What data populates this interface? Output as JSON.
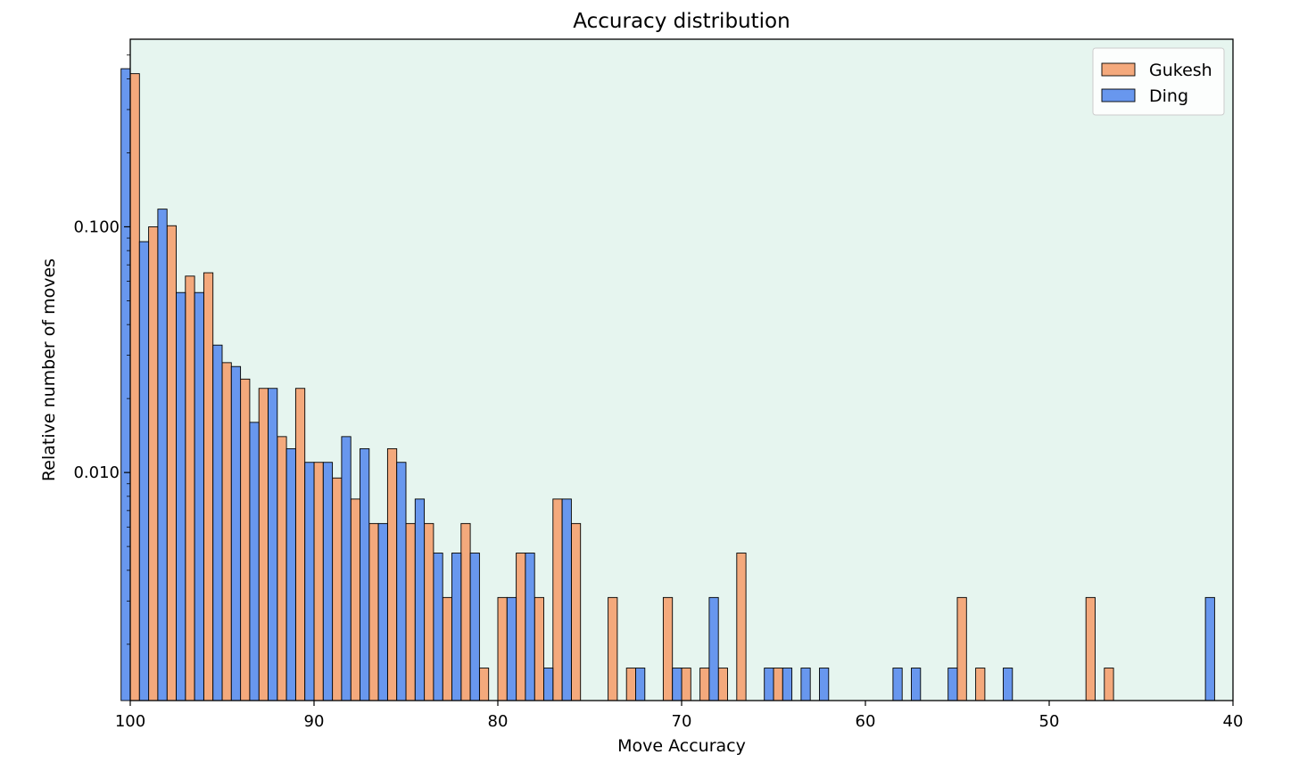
{
  "chart_data": {
    "type": "bar",
    "title": "Accuracy distribution",
    "xlabel": "Move Accuracy",
    "ylabel": "Relative number of moves",
    "x_reversed": true,
    "xlim": [
      100,
      40
    ],
    "ylim": [
      0.00118,
      0.58
    ],
    "y_scale": "log",
    "x_ticks": [
      100,
      90,
      80,
      70,
      60,
      50,
      40
    ],
    "y_ticks": [
      0.1,
      0.01
    ],
    "y_tick_labels": [
      "0.100",
      "0.010"
    ],
    "bin_width": 1,
    "background": "#e6f5ef",
    "legend": {
      "position": "top-right"
    },
    "series": [
      {
        "name": "Gukesh",
        "color": "#f4a97c",
        "points": [
          [
            99.5,
            0.42
          ],
          [
            98.5,
            0.1
          ],
          [
            97.5,
            0.101
          ],
          [
            96.5,
            0.063
          ],
          [
            95.5,
            0.065
          ],
          [
            94.5,
            0.028
          ],
          [
            93.5,
            0.024
          ],
          [
            92.5,
            0.022
          ],
          [
            91.5,
            0.014
          ],
          [
            90.5,
            0.022
          ],
          [
            89.5,
            0.011
          ],
          [
            88.5,
            0.0095
          ],
          [
            87.5,
            0.0078
          ],
          [
            86.5,
            0.0062
          ],
          [
            85.5,
            0.0125
          ],
          [
            84.5,
            0.0062
          ],
          [
            83.5,
            0.0062
          ],
          [
            82.5,
            0.0031
          ],
          [
            81.5,
            0.0062
          ],
          [
            80.5,
            0.0016
          ],
          [
            79.5,
            0.0031
          ],
          [
            78.5,
            0.0047
          ],
          [
            77.5,
            0.0031
          ],
          [
            76.5,
            0.0078
          ],
          [
            75.5,
            0.0062
          ],
          [
            73.5,
            0.0031
          ],
          [
            72.5,
            0.0016
          ],
          [
            70.5,
            0.0031
          ],
          [
            69.5,
            0.0016
          ],
          [
            68.5,
            0.0016
          ],
          [
            67.5,
            0.0016
          ],
          [
            66.5,
            0.0047
          ],
          [
            64.5,
            0.0016
          ],
          [
            54.5,
            0.0031
          ],
          [
            53.5,
            0.0016
          ],
          [
            47.5,
            0.0031
          ],
          [
            46.5,
            0.0016
          ]
        ]
      },
      {
        "name": "Ding",
        "color": "#6897ee",
        "points": [
          [
            100.0,
            0.44
          ],
          [
            99.0,
            0.087
          ],
          [
            98.0,
            0.118
          ],
          [
            97.0,
            0.054
          ],
          [
            96.0,
            0.054
          ],
          [
            95.0,
            0.033
          ],
          [
            94.0,
            0.027
          ],
          [
            93.0,
            0.016
          ],
          [
            92.0,
            0.022
          ],
          [
            91.0,
            0.0125
          ],
          [
            90.0,
            0.011
          ],
          [
            89.0,
            0.011
          ],
          [
            88.0,
            0.014
          ],
          [
            87.0,
            0.0125
          ],
          [
            86.0,
            0.0062
          ],
          [
            85.0,
            0.011
          ],
          [
            84.0,
            0.0078
          ],
          [
            83.0,
            0.0047
          ],
          [
            82.0,
            0.0047
          ],
          [
            81.0,
            0.0047
          ],
          [
            79.0,
            0.0031
          ],
          [
            78.0,
            0.0047
          ],
          [
            77.0,
            0.0016
          ],
          [
            76.0,
            0.0078
          ],
          [
            72.0,
            0.0016
          ],
          [
            70.0,
            0.0016
          ],
          [
            68.0,
            0.0031
          ],
          [
            65.0,
            0.0016
          ],
          [
            64.0,
            0.0016
          ],
          [
            63.0,
            0.0016
          ],
          [
            62.0,
            0.0016
          ],
          [
            58.0,
            0.0016
          ],
          [
            57.0,
            0.0016
          ],
          [
            55.0,
            0.0016
          ],
          [
            52.0,
            0.0016
          ],
          [
            41.0,
            0.0031
          ]
        ]
      }
    ]
  }
}
